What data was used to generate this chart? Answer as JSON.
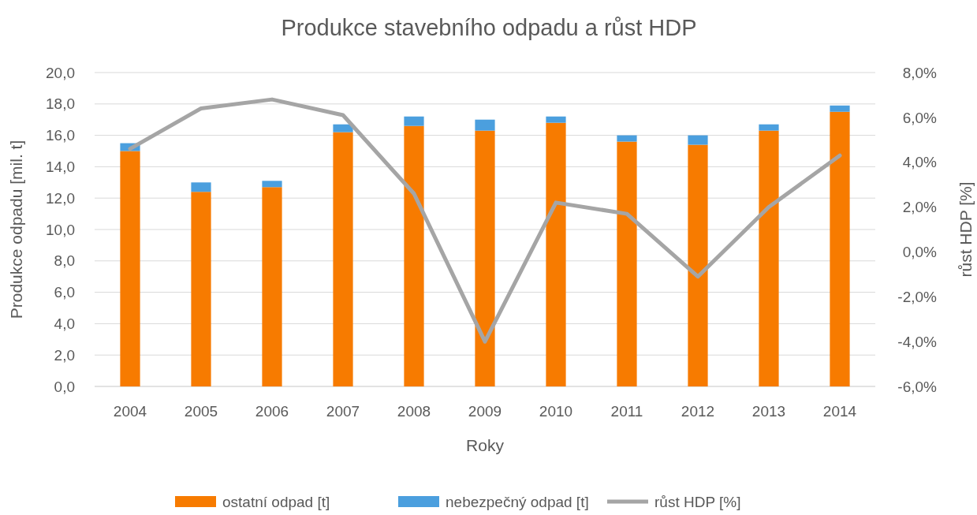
{
  "chart_data": {
    "type": "bar",
    "title": "Produkce stavebního odpadu a růst HDP",
    "xlabel": "Roky",
    "ylabel": "Produkce odpadu [mil. t]",
    "y2label": "růst HDP [%]",
    "categories": [
      "2004",
      "2005",
      "2006",
      "2007",
      "2008",
      "2009",
      "2010",
      "2011",
      "2012",
      "2013",
      "2014"
    ],
    "stacked": true,
    "grid": "y",
    "legend": "bottom",
    "ylim": [
      0,
      20
    ],
    "yticks": [
      {
        "value": 0,
        "label": "0,0"
      },
      {
        "value": 2,
        "label": "2,0"
      },
      {
        "value": 4,
        "label": "4,0"
      },
      {
        "value": 6,
        "label": "6,0"
      },
      {
        "value": 8,
        "label": "8,0"
      },
      {
        "value": 10,
        "label": "10,0"
      },
      {
        "value": 12,
        "label": "12,0"
      },
      {
        "value": 14,
        "label": "14,0"
      },
      {
        "value": 16,
        "label": "16,0"
      },
      {
        "value": 18,
        "label": "18,0"
      },
      {
        "value": 20,
        "label": "20,0"
      }
    ],
    "y2lim": [
      -6,
      8
    ],
    "y2ticks": [
      {
        "value": -6,
        "label": "-6,0%"
      },
      {
        "value": -4,
        "label": "-4,0%"
      },
      {
        "value": -2,
        "label": "-2,0%"
      },
      {
        "value": 0,
        "label": "0,0%"
      },
      {
        "value": 2,
        "label": "2,0%"
      },
      {
        "value": 4,
        "label": "4,0%"
      },
      {
        "value": 6,
        "label": "6,0%"
      },
      {
        "value": 8,
        "label": "8,0%"
      }
    ],
    "series": [
      {
        "name": "ostatní odpad [t]",
        "color": "#f77b00",
        "values": [
          15.0,
          12.4,
          12.7,
          16.2,
          16.6,
          16.3,
          16.8,
          15.6,
          15.4,
          16.3,
          17.5
        ]
      },
      {
        "name": "nebezpečný odpad [t]",
        "color": "#4b9fde",
        "values": [
          0.5,
          0.6,
          0.4,
          0.5,
          0.6,
          0.7,
          0.4,
          0.4,
          0.6,
          0.4,
          0.4
        ]
      },
      {
        "name": "růst HDP [%]",
        "type": "line",
        "axis": "y2",
        "color": "#a5a5a5",
        "values": [
          4.6,
          6.4,
          6.8,
          6.1,
          2.6,
          -4.0,
          2.2,
          1.7,
          -1.1,
          2.0,
          4.3
        ]
      }
    ]
  }
}
